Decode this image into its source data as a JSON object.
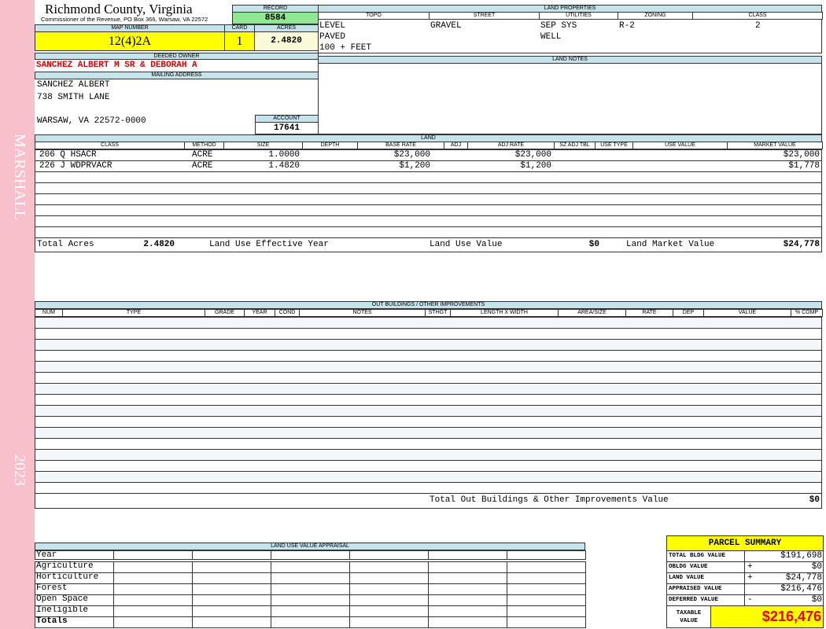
{
  "sidebar": {
    "name": "MARSHALL",
    "year": "2023"
  },
  "header": {
    "title": "Richmond County, Virginia",
    "subtitle": "Commissioner of the Revenue, PO Box 366, Warsaw, VA 22572"
  },
  "record": {
    "label": "RECORD",
    "value": "8584"
  },
  "map_number": {
    "label": "MAP NUMBER",
    "value": "12(4)2A"
  },
  "card": {
    "label": "CARD",
    "value": "1"
  },
  "acres": {
    "label": "ACRES",
    "value": "2.4820"
  },
  "land_properties": {
    "title": "LAND PROPERTIES",
    "columns": [
      "TOPO",
      "STREET",
      "UTILITIES",
      "ZONING",
      "CLASS"
    ],
    "values": [
      [
        "LEVEL",
        "PAVED",
        "100 + FEET"
      ],
      [
        "GRAVEL"
      ],
      [
        "SEP SYS",
        "WELL"
      ],
      [
        "R-2"
      ],
      [
        "2"
      ]
    ]
  },
  "deeded_owner": {
    "label": "DEEDED OWNER",
    "value": "SANCHEZ ALBERT M SR & DEBORAH A"
  },
  "mailing_address": {
    "label": "MAILING ADDRESS",
    "lines": [
      "SANCHEZ ALBERT",
      "738 SMITH LANE",
      "WARSAW, VA 22572-0000"
    ]
  },
  "account": {
    "label": "ACCOUNT",
    "value": "17641"
  },
  "land_notes": {
    "title": "LAND NOTES"
  },
  "land": {
    "title": "LAND",
    "columns": [
      "CLASS",
      "METHOD",
      "SIZE",
      "DEPTH",
      "BASE RATE",
      "ADJ",
      "ADJ RATE",
      "SZ ADJ TBL",
      "USE TYPE",
      "USE VALUE",
      "MARKET VALUE"
    ],
    "rows": [
      {
        "class": "206 Q HSACR",
        "method": "ACRE",
        "size": "1.0000",
        "base_rate": "$23,000",
        "adj_rate": "$23,000",
        "market_value": "$23,000"
      },
      {
        "class": "226 J WDPRVACR",
        "method": "ACRE",
        "size": "1.4820",
        "base_rate": "$1,200",
        "adj_rate": "$1,200",
        "market_value": "$1,778"
      }
    ],
    "totals": {
      "total_acres_label": "Total Acres",
      "total_acres": "2.4820",
      "effective_year_label": "Land Use Effective Year",
      "use_value_label": "Land Use Value",
      "use_value": "$0",
      "market_value_label": "Land Market Value",
      "market_value": "$24,778"
    }
  },
  "out_buildings": {
    "title": "OUT BUILDINGS / OTHER IMPROVEMENTS",
    "columns": [
      "NUM",
      "TYPE",
      "GRADE",
      "YEAR",
      "COND",
      "NOTES",
      "STHGT",
      "LENGTH X WIDTH",
      "AREA/SIZE",
      "RATE",
      "DEP",
      "VALUE",
      "% COMP"
    ],
    "total_label": "Total Out Buildings & Other Improvements Value",
    "total": "$0"
  },
  "land_use_appraisal": {
    "title": "LAND USE VALUE APPRAISAL",
    "rows": [
      "Year",
      "Agriculture",
      "Horticulture",
      "Forest",
      "Open Space",
      "Ineligible",
      "Totals"
    ]
  },
  "parcel_summary": {
    "title": "PARCEL SUMMARY",
    "rows": [
      {
        "label": "TOTAL BLDG VALUE",
        "value": "$191,698"
      },
      {
        "label": "OBLDG VALUE",
        "sign": "+",
        "value": "$0"
      },
      {
        "label": "LAND VALUE",
        "sign": "+",
        "value": "$24,778"
      },
      {
        "label": "APPRAISED VALUE",
        "value": "$216,476"
      },
      {
        "label": "DEFERRED VALUE",
        "sign": "-",
        "value": "$0"
      }
    ],
    "taxable": {
      "label": "TAXABLE VALUE",
      "value": "$216,476"
    }
  }
}
